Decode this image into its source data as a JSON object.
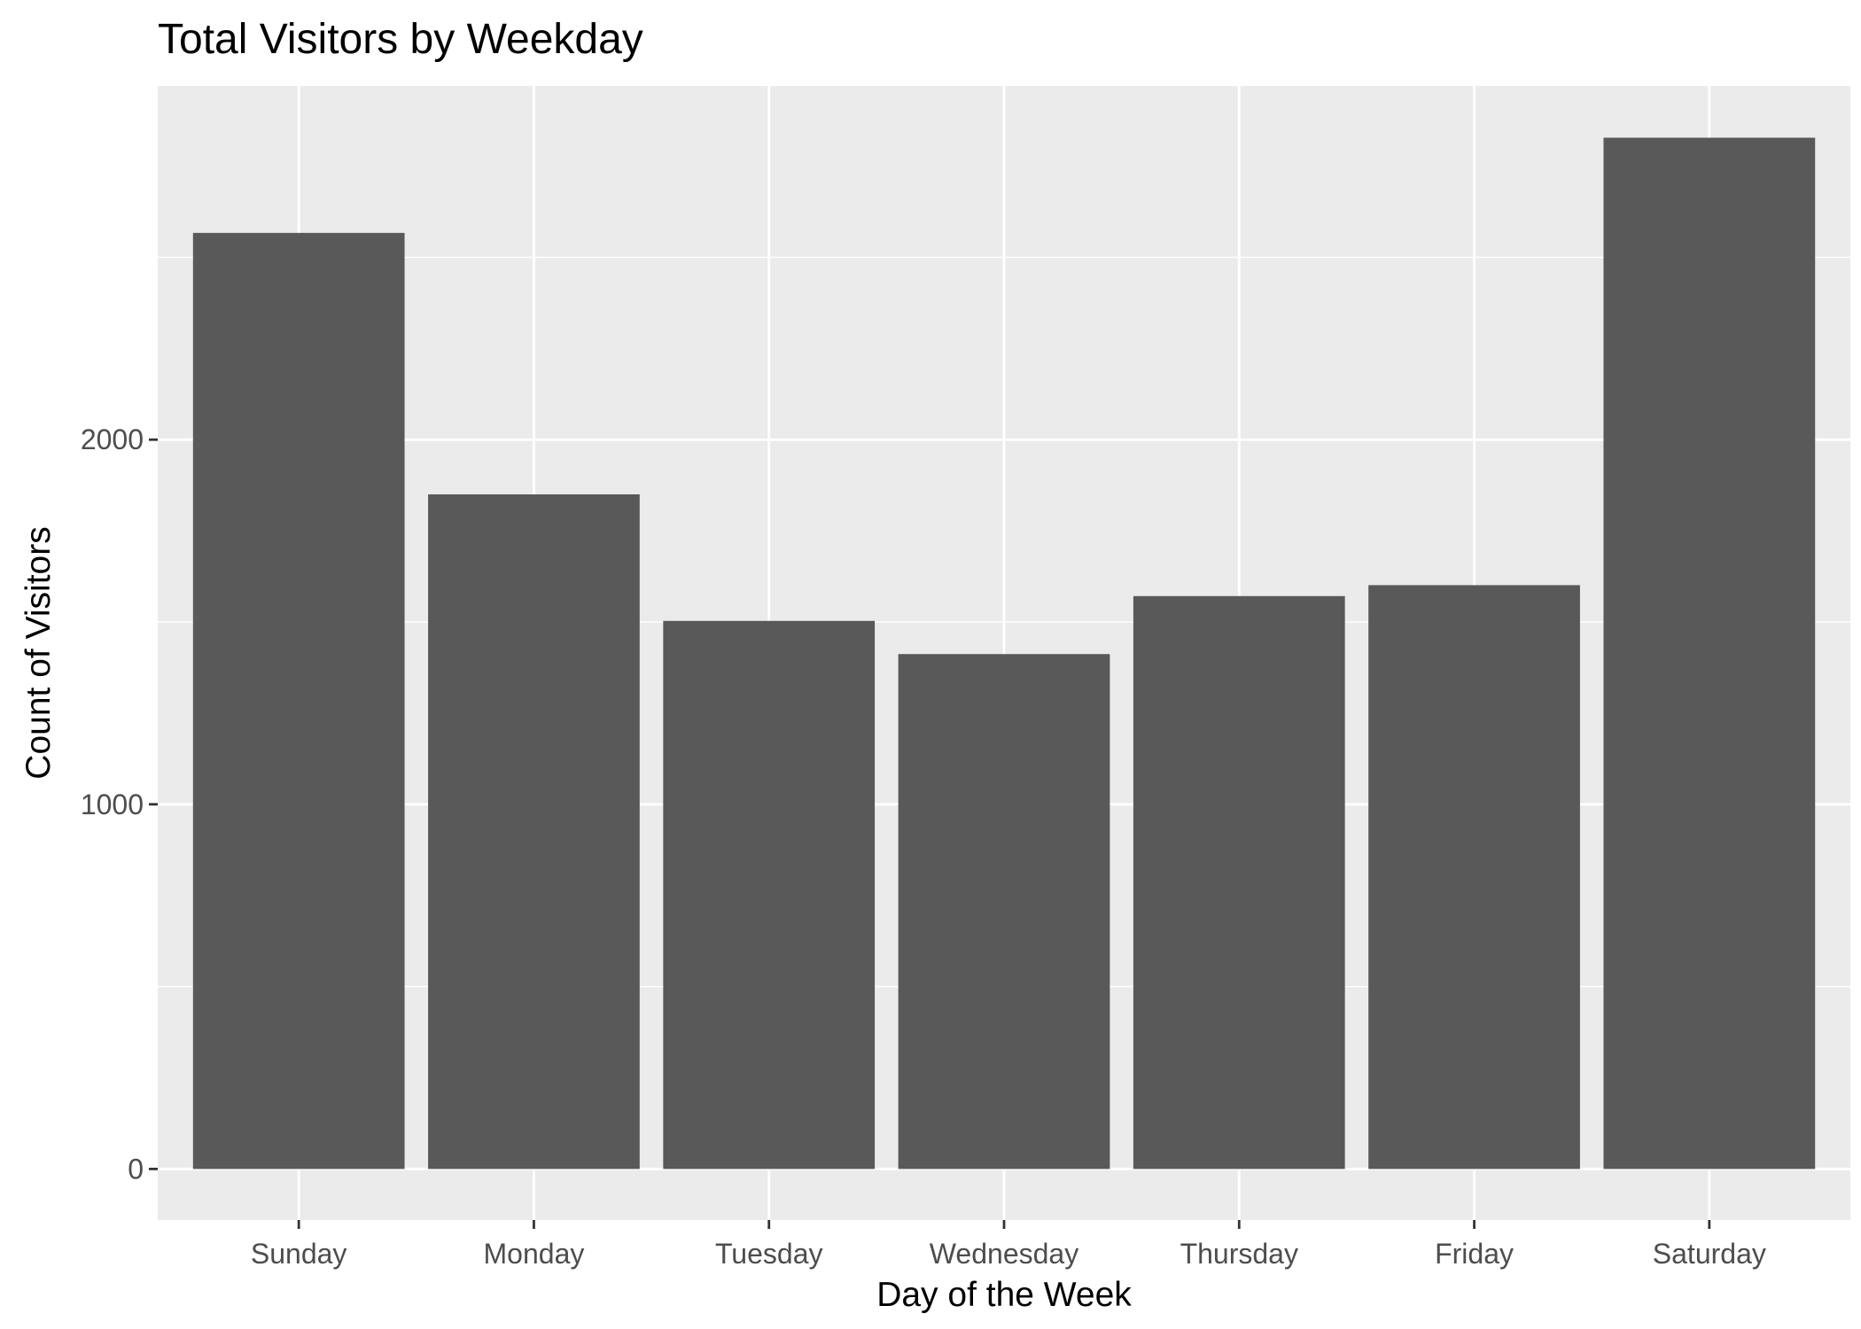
{
  "chart_data": {
    "type": "bar",
    "title": "Total Visitors by Weekday",
    "xlabel": "Day of the Week",
    "ylabel": "Count of Visitors",
    "categories": [
      "Sunday",
      "Monday",
      "Tuesday",
      "Wednesday",
      "Thursday",
      "Friday",
      "Saturday"
    ],
    "values": [
      2567,
      1850,
      1503,
      1412,
      1571,
      1601,
      2828
    ],
    "ylim": [
      -140,
      2970
    ],
    "y_ticks": [
      0,
      1000,
      2000
    ],
    "y_minor_ticks": [
      500,
      1500,
      2500
    ],
    "grid": true,
    "legend": "none",
    "colors": {
      "bar": "#595959",
      "panel": "#ebebeb",
      "grid": "#ffffff",
      "axis_tick": "#333333"
    }
  }
}
